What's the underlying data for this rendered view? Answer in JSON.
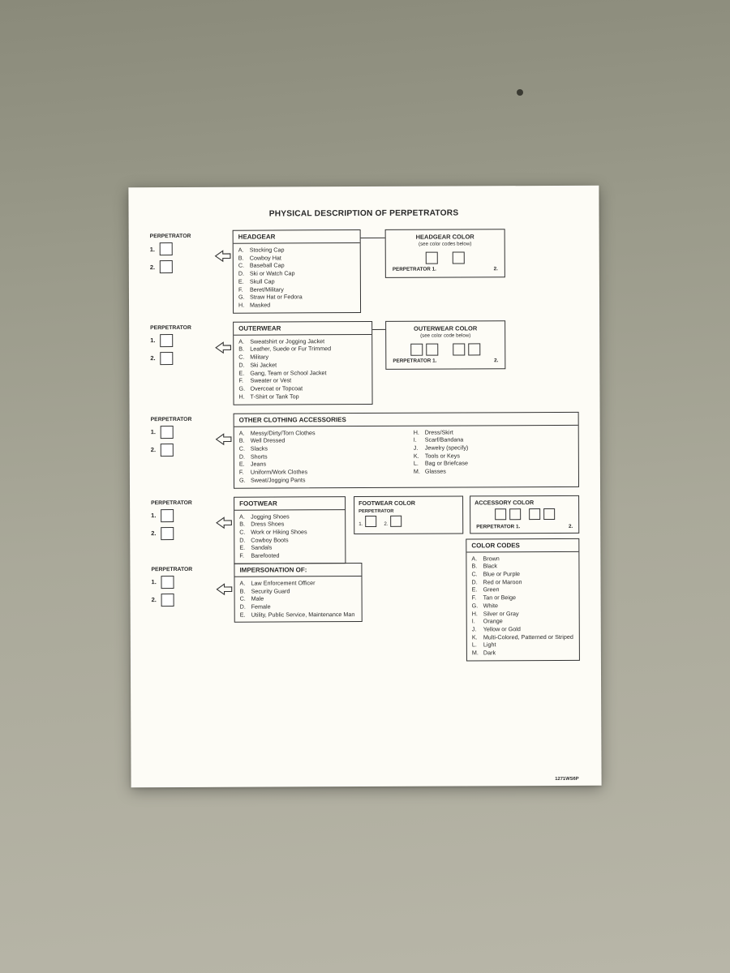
{
  "title": "PHYSICAL DESCRIPTION OF PERPETRATORS",
  "perp_label": "PERPETRATOR",
  "nums": {
    "one": "1.",
    "two": "2."
  },
  "headgear": {
    "title": "HEADGEAR",
    "items": [
      {
        "l": "A.",
        "t": "Stocking Cap"
      },
      {
        "l": "B.",
        "t": "Cowboy Hat"
      },
      {
        "l": "C.",
        "t": "Baseball Cap"
      },
      {
        "l": "D.",
        "t": "Ski or Watch Cap"
      },
      {
        "l": "E.",
        "t": "Skull Cap"
      },
      {
        "l": "F.",
        "t": "Beret/Military"
      },
      {
        "l": "G.",
        "t": "Straw Hat or Fedora"
      },
      {
        "l": "H.",
        "t": "Masked"
      }
    ],
    "color_title": "HEADGEAR COLOR",
    "color_sub": "(see color codes below)",
    "cap_perp": "PERPETRATOR  1.",
    "cap_two": "2."
  },
  "outerwear": {
    "title": "OUTERWEAR",
    "items": [
      {
        "l": "A.",
        "t": "Sweatshirt or Jogging Jacket"
      },
      {
        "l": "B.",
        "t": "Leather, Suede or Fur Trimmed"
      },
      {
        "l": "C.",
        "t": "Military"
      },
      {
        "l": "D.",
        "t": "Ski Jacket"
      },
      {
        "l": "E.",
        "t": "Gang, Team or School Jacket"
      },
      {
        "l": "F.",
        "t": "Sweater or Vest"
      },
      {
        "l": "G.",
        "t": "Overcoat or Topcoat"
      },
      {
        "l": "H.",
        "t": "T-Shirt or Tank Top"
      }
    ],
    "color_title": "OUTERWEAR COLOR",
    "color_sub": "(see color code below)",
    "cap_perp": "PERPETRATOR  1.",
    "cap_two": "2."
  },
  "accessories": {
    "title": "OTHER CLOTHING ACCESSORIES",
    "col1": [
      {
        "l": "A.",
        "t": "Messy/Dirty/Torn Clothes"
      },
      {
        "l": "B.",
        "t": "Well Dressed"
      },
      {
        "l": "C.",
        "t": "Slacks"
      },
      {
        "l": "D.",
        "t": "Shorts"
      },
      {
        "l": "E.",
        "t": "Jeans"
      },
      {
        "l": "F.",
        "t": "Uniform/Work Clothes"
      },
      {
        "l": "G.",
        "t": "Sweat/Jogging Pants"
      }
    ],
    "col2": [
      {
        "l": "H.",
        "t": "Dress/Skirt"
      },
      {
        "l": "I.",
        "t": "Scarf/Bandana"
      },
      {
        "l": "J.",
        "t": "Jewelry (specify)"
      },
      {
        "l": "K.",
        "t": "Tools or Keys"
      },
      {
        "l": "L.",
        "t": "Bag or Briefcase"
      },
      {
        "l": "M.",
        "t": "Glasses"
      }
    ]
  },
  "footwear": {
    "title": "FOOTWEAR",
    "items": [
      {
        "l": "A.",
        "t": "Jogging Shoes"
      },
      {
        "l": "B.",
        "t": "Dress Shoes"
      },
      {
        "l": "C.",
        "t": "Work or Hiking Shoes"
      },
      {
        "l": "D.",
        "t": "Cowboy Boots"
      },
      {
        "l": "E.",
        "t": "Sandals"
      },
      {
        "l": "F.",
        "t": "Barefooted"
      }
    ],
    "color_title": "FOOTWEAR COLOR",
    "perp_lbl": "PERPETRATOR",
    "n1": "1.",
    "n2": "2."
  },
  "accessory_color": {
    "title": "ACCESSORY COLOR",
    "cap_perp": "PERPETRATOR  1.",
    "cap_two": "2."
  },
  "impersonation": {
    "title": "IMPERSONATION OF:",
    "items": [
      {
        "l": "A.",
        "t": "Law Enforcement Officer"
      },
      {
        "l": "B.",
        "t": "Security Guard"
      },
      {
        "l": "C.",
        "t": "Male"
      },
      {
        "l": "D.",
        "t": "Female"
      },
      {
        "l": "E.",
        "t": "Utility, Public Service, Maintenance Man"
      }
    ]
  },
  "color_codes": {
    "title": "COLOR CODES",
    "items": [
      {
        "l": "A.",
        "t": "Brown"
      },
      {
        "l": "B.",
        "t": "Black"
      },
      {
        "l": "C.",
        "t": "Blue or Purple"
      },
      {
        "l": "D.",
        "t": "Red or Maroon"
      },
      {
        "l": "E.",
        "t": "Green"
      },
      {
        "l": "F.",
        "t": "Tan or Beige"
      },
      {
        "l": "G.",
        "t": "White"
      },
      {
        "l": "H.",
        "t": "Silver or Gray"
      },
      {
        "l": "I.",
        "t": "Orange"
      },
      {
        "l": "J.",
        "t": "Yellow or Gold"
      },
      {
        "l": "K.",
        "t": "Multi-Colored, Patterned or Striped"
      },
      {
        "l": "L.",
        "t": "Light"
      },
      {
        "l": "M.",
        "t": "Dark"
      }
    ]
  },
  "form_number": "1271WS6P"
}
